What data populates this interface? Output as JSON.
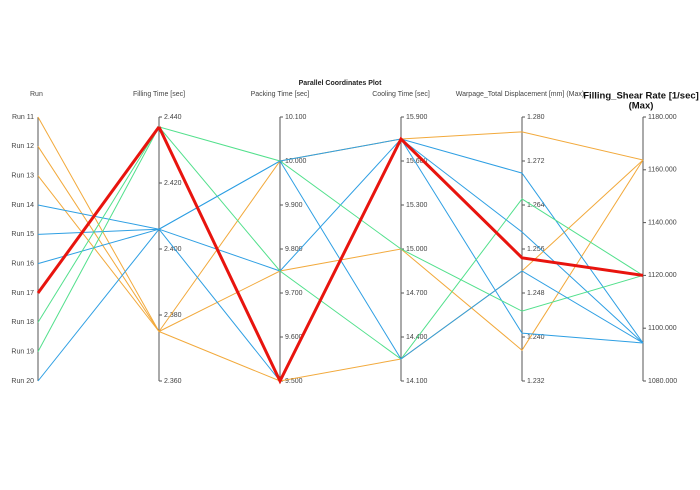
{
  "chart_data": {
    "type": "parallel",
    "title": "Parallel Coordinates Plot",
    "run_axis_label": "Run",
    "axes": [
      {
        "label": "Filling Time [sec]",
        "ylim": [
          2.36,
          2.44
        ],
        "yticks": [
          {
            "value": 2.44,
            "label": "2.440"
          },
          {
            "value": 2.42,
            "label": "2.420"
          },
          {
            "value": 2.4,
            "label": "2.400"
          },
          {
            "value": 2.38,
            "label": "2.380"
          },
          {
            "value": 2.36,
            "label": "2.360"
          }
        ]
      },
      {
        "label": "Packing Time [sec]",
        "ylim": [
          9.5,
          10.1
        ],
        "yticks": [
          {
            "value": 10.1,
            "label": "10.100"
          },
          {
            "value": 10.0,
            "label": "10.000"
          },
          {
            "value": 9.9,
            "label": "9.900"
          },
          {
            "value": 9.8,
            "label": "9.800"
          },
          {
            "value": 9.7,
            "label": "9.700"
          },
          {
            "value": 9.6,
            "label": "9.600"
          },
          {
            "value": 9.5,
            "label": "9.500"
          }
        ]
      },
      {
        "label": "Cooling Time [sec]",
        "ylim": [
          14.1,
          15.9
        ],
        "yticks": [
          {
            "value": 15.9,
            "label": "15.900"
          },
          {
            "value": 15.6,
            "label": "15.600"
          },
          {
            "value": 15.3,
            "label": "15.300"
          },
          {
            "value": 15.0,
            "label": "15.000"
          },
          {
            "value": 14.7,
            "label": "14.700"
          },
          {
            "value": 14.4,
            "label": "14.400"
          },
          {
            "value": 14.1,
            "label": "14.100"
          }
        ]
      },
      {
        "label": "Warpage_Total Displacement [mm] (Max)",
        "ylim": [
          1.232,
          1.28
        ],
        "yticks": [
          {
            "value": 1.28,
            "label": "1.280"
          },
          {
            "value": 1.272,
            "label": "1.272"
          },
          {
            "value": 1.264,
            "label": "1.264"
          },
          {
            "value": 1.256,
            "label": "1.256"
          },
          {
            "value": 1.248,
            "label": "1.248"
          },
          {
            "value": 1.24,
            "label": "1.240"
          },
          {
            "value": 1.232,
            "label": "1.232"
          }
        ]
      },
      {
        "label": [
          "Filling_Shear Rate [1/sec]",
          "(Max)"
        ],
        "emphasis": true,
        "ylim": [
          1080,
          1180
        ],
        "yticks": [
          {
            "value": 1180,
            "label": "1180.000"
          },
          {
            "value": 1160,
            "label": "1160.000"
          },
          {
            "value": 1140,
            "label": "1140.000"
          },
          {
            "value": 1120,
            "label": "1120.000"
          },
          {
            "value": 1100,
            "label": "1100.000"
          },
          {
            "value": 1080,
            "label": "1080.000"
          }
        ]
      }
    ],
    "series": [
      {
        "name": "Run 11",
        "color": "#f2a93b",
        "values": [
          2.375,
          10.0,
          15.75,
          1.2773,
          1163.7
        ]
      },
      {
        "name": "Run 12",
        "color": "#f2a93b",
        "values": [
          2.375,
          9.75,
          15.0,
          1.2376,
          1163.7
        ]
      },
      {
        "name": "Run 13",
        "color": "#f2a93b",
        "values": [
          2.375,
          9.5,
          14.25,
          1.252,
          1163.7
        ]
      },
      {
        "name": "Run 14",
        "color": "#2e9fe3",
        "values": [
          2.406,
          10.0,
          15.75,
          1.2698,
          1094.4
        ]
      },
      {
        "name": "Run 15",
        "color": "#2e9fe3",
        "values": [
          2.406,
          9.75,
          15.75,
          1.2591,
          1094.4
        ]
      },
      {
        "name": "Run 16",
        "color": "#2e9fe3",
        "values": [
          2.406,
          9.5,
          15.75,
          1.2407,
          1094.4
        ]
      },
      {
        "name": "Run 17",
        "color": "#e8140e",
        "highlighted": true,
        "values": [
          2.437,
          9.5,
          15.75,
          1.2544,
          1120
        ]
      },
      {
        "name": "Run 18",
        "color": "#52e08c",
        "values": [
          2.437,
          10.0,
          15.0,
          1.2447,
          1120
        ]
      },
      {
        "name": "Run 19",
        "color": "#52e08c",
        "values": [
          2.437,
          9.75,
          14.25,
          1.2651,
          1120
        ]
      },
      {
        "name": "Run 20",
        "color": "#2e9fe3",
        "values": [
          2.406,
          10.0,
          14.25,
          1.252,
          1094.4
        ]
      }
    ]
  }
}
